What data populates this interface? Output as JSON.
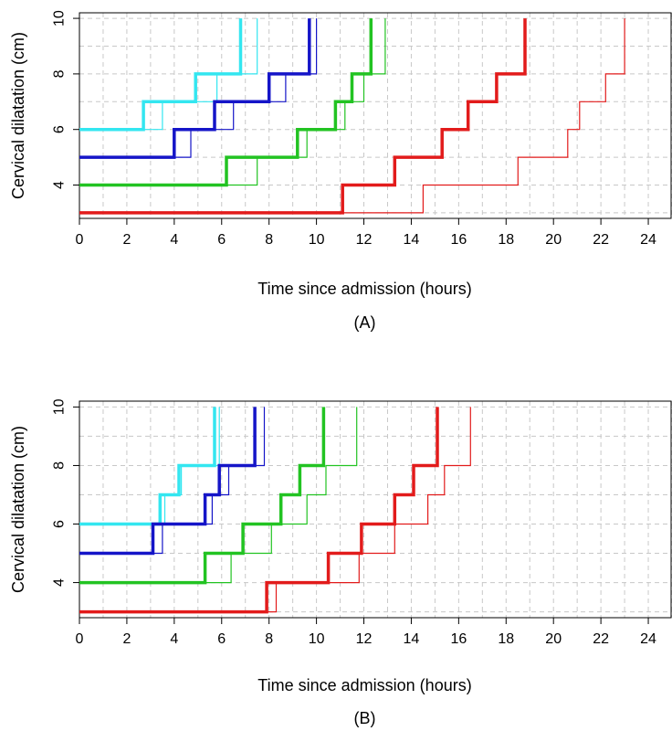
{
  "chart_data": [
    {
      "type": "line",
      "step": true,
      "caption": "(A)",
      "xlabel": "Time since admission (hours)",
      "ylabel": "Cervical dilatation (cm)",
      "xlim": [
        0,
        25
      ],
      "ylim": [
        2.8,
        10.2
      ],
      "xticks": [
        "0",
        "2",
        "4",
        "6",
        "8",
        "10",
        "12",
        "14",
        "16",
        "18",
        "20",
        "22",
        "24"
      ],
      "yticks": [
        "4",
        "6",
        "8",
        "10"
      ],
      "grid": true,
      "series": [
        {
          "color": "#33e6f0",
          "weight": "thick",
          "points": [
            [
              0,
              6
            ],
            [
              2.7,
              6
            ],
            [
              2.7,
              7
            ],
            [
              4.9,
              7
            ],
            [
              4.9,
              8
            ],
            [
              6.8,
              8
            ],
            [
              6.8,
              10
            ]
          ]
        },
        {
          "color": "#33e6f0",
          "weight": "thin",
          "points": [
            [
              0,
              6
            ],
            [
              3.5,
              6
            ],
            [
              3.5,
              7
            ],
            [
              5.8,
              7
            ],
            [
              5.8,
              8
            ],
            [
              7.5,
              8
            ],
            [
              7.5,
              10
            ]
          ]
        },
        {
          "color": "#1515c8",
          "weight": "thick",
          "points": [
            [
              0,
              5
            ],
            [
              4.0,
              5
            ],
            [
              4.0,
              6
            ],
            [
              5.7,
              6
            ],
            [
              5.7,
              7
            ],
            [
              8.0,
              7
            ],
            [
              8.0,
              8
            ],
            [
              9.7,
              8
            ],
            [
              9.7,
              10
            ]
          ]
        },
        {
          "color": "#1515c8",
          "weight": "thin",
          "points": [
            [
              0,
              5
            ],
            [
              4.7,
              5
            ],
            [
              4.7,
              6
            ],
            [
              6.5,
              6
            ],
            [
              6.5,
              7
            ],
            [
              8.7,
              7
            ],
            [
              8.7,
              8
            ],
            [
              10.0,
              8
            ],
            [
              10.0,
              10
            ]
          ]
        },
        {
          "color": "#22c322",
          "weight": "thick",
          "points": [
            [
              0,
              4
            ],
            [
              6.2,
              4
            ],
            [
              6.2,
              5
            ],
            [
              9.2,
              5
            ],
            [
              9.2,
              6
            ],
            [
              10.8,
              6
            ],
            [
              10.8,
              7
            ],
            [
              11.5,
              7
            ],
            [
              11.5,
              8
            ],
            [
              12.3,
              8
            ],
            [
              12.3,
              10
            ]
          ]
        },
        {
          "color": "#22c322",
          "weight": "thin",
          "points": [
            [
              0,
              4
            ],
            [
              7.5,
              4
            ],
            [
              7.5,
              5
            ],
            [
              9.6,
              5
            ],
            [
              9.6,
              6
            ],
            [
              11.2,
              6
            ],
            [
              11.2,
              7
            ],
            [
              12.0,
              7
            ],
            [
              12.0,
              8
            ],
            [
              12.9,
              8
            ],
            [
              12.9,
              10
            ]
          ]
        },
        {
          "color": "#e21b1b",
          "weight": "thick",
          "points": [
            [
              0,
              3
            ],
            [
              11.1,
              3
            ],
            [
              11.1,
              4
            ],
            [
              13.3,
              4
            ],
            [
              13.3,
              5
            ],
            [
              15.3,
              5
            ],
            [
              15.3,
              6
            ],
            [
              16.4,
              6
            ],
            [
              16.4,
              7
            ],
            [
              17.6,
              7
            ],
            [
              17.6,
              8
            ],
            [
              18.8,
              8
            ],
            [
              18.8,
              10
            ]
          ]
        },
        {
          "color": "#e21b1b",
          "weight": "thin",
          "points": [
            [
              0,
              3
            ],
            [
              14.5,
              3
            ],
            [
              14.5,
              4
            ],
            [
              18.5,
              4
            ],
            [
              18.5,
              5
            ],
            [
              20.6,
              5
            ],
            [
              20.6,
              6
            ],
            [
              21.1,
              6
            ],
            [
              21.1,
              7
            ],
            [
              22.2,
              7
            ],
            [
              22.2,
              8
            ],
            [
              23.0,
              8
            ],
            [
              23.0,
              10
            ]
          ]
        }
      ]
    },
    {
      "type": "line",
      "step": true,
      "caption": "(B)",
      "xlabel": "Time since admission (hours)",
      "ylabel": "Cervical dilatation (cm)",
      "xlim": [
        0,
        25
      ],
      "ylim": [
        2.8,
        10.2
      ],
      "xticks": [
        "0",
        "2",
        "4",
        "6",
        "8",
        "10",
        "12",
        "14",
        "16",
        "18",
        "20",
        "22",
        "24"
      ],
      "yticks": [
        "4",
        "6",
        "8",
        "10"
      ],
      "grid": true,
      "series": [
        {
          "color": "#33e6f0",
          "weight": "thick",
          "points": [
            [
              0,
              6
            ],
            [
              3.4,
              6
            ],
            [
              3.4,
              7
            ],
            [
              4.2,
              7
            ],
            [
              4.2,
              8
            ],
            [
              5.7,
              8
            ],
            [
              5.7,
              10
            ]
          ]
        },
        {
          "color": "#33e6f0",
          "weight": "thin",
          "points": [
            [
              0,
              6
            ],
            [
              3.6,
              6
            ],
            [
              3.6,
              7
            ],
            [
              4.3,
              7
            ],
            [
              4.3,
              8
            ],
            [
              5.9,
              8
            ],
            [
              5.9,
              10
            ]
          ]
        },
        {
          "color": "#1515c8",
          "weight": "thick",
          "points": [
            [
              0,
              5
            ],
            [
              3.1,
              5
            ],
            [
              3.1,
              6
            ],
            [
              5.3,
              6
            ],
            [
              5.3,
              7
            ],
            [
              5.9,
              7
            ],
            [
              5.9,
              8
            ],
            [
              7.4,
              8
            ],
            [
              7.4,
              10
            ]
          ]
        },
        {
          "color": "#1515c8",
          "weight": "thin",
          "points": [
            [
              0,
              5
            ],
            [
              3.5,
              5
            ],
            [
              3.5,
              6
            ],
            [
              5.6,
              6
            ],
            [
              5.6,
              7
            ],
            [
              6.3,
              7
            ],
            [
              6.3,
              8
            ],
            [
              7.8,
              8
            ],
            [
              7.8,
              10
            ]
          ]
        },
        {
          "color": "#22c322",
          "weight": "thick",
          "points": [
            [
              0,
              4
            ],
            [
              5.3,
              4
            ],
            [
              5.3,
              5
            ],
            [
              6.9,
              5
            ],
            [
              6.9,
              6
            ],
            [
              8.5,
              6
            ],
            [
              8.5,
              7
            ],
            [
              9.3,
              7
            ],
            [
              9.3,
              8
            ],
            [
              10.3,
              8
            ],
            [
              10.3,
              10
            ]
          ]
        },
        {
          "color": "#22c322",
          "weight": "thin",
          "points": [
            [
              0,
              4
            ],
            [
              6.4,
              4
            ],
            [
              6.4,
              5
            ],
            [
              8.1,
              5
            ],
            [
              8.1,
              6
            ],
            [
              9.6,
              6
            ],
            [
              9.6,
              7
            ],
            [
              10.4,
              7
            ],
            [
              10.4,
              8
            ],
            [
              11.7,
              8
            ],
            [
              11.7,
              10
            ]
          ]
        },
        {
          "color": "#e21b1b",
          "weight": "thick",
          "points": [
            [
              0,
              3
            ],
            [
              7.9,
              3
            ],
            [
              7.9,
              4
            ],
            [
              10.5,
              4
            ],
            [
              10.5,
              5
            ],
            [
              11.9,
              5
            ],
            [
              11.9,
              6
            ],
            [
              13.3,
              6
            ],
            [
              13.3,
              7
            ],
            [
              14.1,
              7
            ],
            [
              14.1,
              8
            ],
            [
              15.1,
              8
            ],
            [
              15.1,
              10
            ]
          ]
        },
        {
          "color": "#e21b1b",
          "weight": "thin",
          "points": [
            [
              0,
              3
            ],
            [
              8.3,
              3
            ],
            [
              8.3,
              4
            ],
            [
              11.8,
              4
            ],
            [
              11.8,
              5
            ],
            [
              13.3,
              5
            ],
            [
              13.3,
              6
            ],
            [
              14.7,
              6
            ],
            [
              14.7,
              7
            ],
            [
              15.4,
              7
            ],
            [
              15.4,
              8
            ],
            [
              16.5,
              8
            ],
            [
              16.5,
              10
            ]
          ]
        }
      ]
    }
  ]
}
